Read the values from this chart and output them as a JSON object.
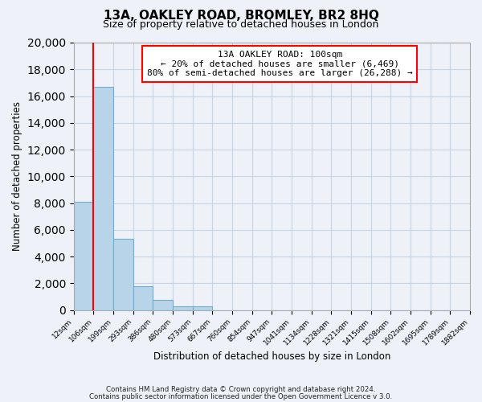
{
  "title": "13A, OAKLEY ROAD, BROMLEY, BR2 8HQ",
  "subtitle": "Size of property relative to detached houses in London",
  "xlabel": "Distribution of detached houses by size in London",
  "ylabel": "Number of detached properties",
  "bar_values": [
    8100,
    16700,
    5300,
    1750,
    750,
    275,
    275,
    0,
    0,
    0,
    0,
    0,
    0,
    0,
    0,
    0,
    0,
    0,
    0,
    0
  ],
  "bin_labels": [
    "12sqm",
    "106sqm",
    "199sqm",
    "293sqm",
    "386sqm",
    "480sqm",
    "573sqm",
    "667sqm",
    "760sqm",
    "854sqm",
    "947sqm",
    "1041sqm",
    "1134sqm",
    "1228sqm",
    "1321sqm",
    "1415sqm",
    "1508sqm",
    "1602sqm",
    "1695sqm",
    "1789sqm",
    "1882sqm"
  ],
  "bar_color": "#b8d4e8",
  "bar_edge_color": "#6baed6",
  "vline_x": 1.0,
  "vline_color": "red",
  "ylim": [
    0,
    20000
  ],
  "yticks": [
    0,
    2000,
    4000,
    6000,
    8000,
    10000,
    12000,
    14000,
    16000,
    18000,
    20000
  ],
  "annotation_title": "13A OAKLEY ROAD: 100sqm",
  "annotation_line1": "← 20% of detached houses are smaller (6,469)",
  "annotation_line2": "80% of semi-detached houses are larger (26,288) →",
  "footer1": "Contains HM Land Registry data © Crown copyright and database right 2024.",
  "footer2": "Contains public sector information licensed under the Open Government Licence v 3.0.",
  "background_color": "#eef2f8",
  "grid_color": "#c8d4e4",
  "figsize": [
    6.0,
    5.0
  ],
  "dpi": 100
}
